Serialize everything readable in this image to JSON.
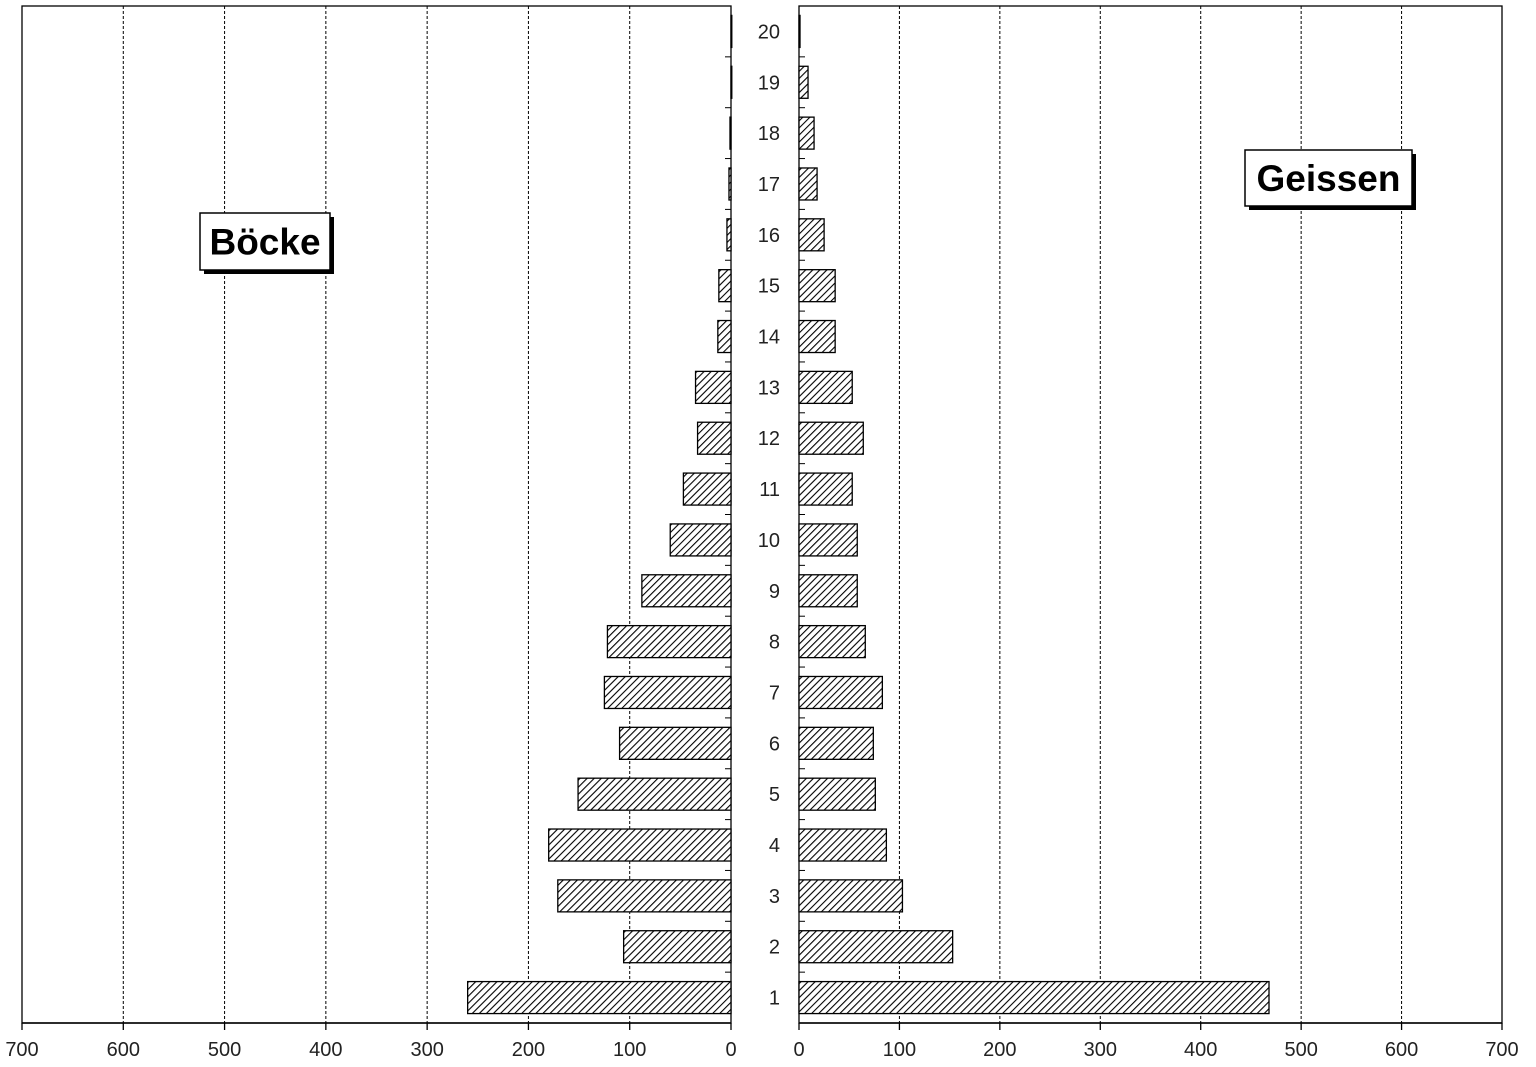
{
  "chart_data": {
    "type": "bar",
    "orientation": "horizontal",
    "layout": "population-pyramid",
    "categories": [
      "1",
      "2",
      "3",
      "4",
      "5",
      "6",
      "7",
      "8",
      "9",
      "10",
      "11",
      "12",
      "13",
      "14",
      "15",
      "16",
      "17",
      "18",
      "19",
      "20"
    ],
    "series": [
      {
        "name": "Böcke",
        "side": "left",
        "values": [
          260,
          106,
          171,
          180,
          151,
          110,
          125,
          122,
          88,
          60,
          47,
          33,
          35,
          13,
          12,
          4,
          2,
          1,
          0,
          0
        ]
      },
      {
        "name": "Geissen",
        "side": "right",
        "values": [
          468,
          153,
          103,
          87,
          76,
          74,
          83,
          66,
          58,
          58,
          53,
          64,
          53,
          36,
          36,
          25,
          18,
          15,
          9,
          1
        ]
      }
    ],
    "xlim": [
      0,
      700
    ],
    "x_ticks": [
      0,
      100,
      200,
      300,
      400,
      500,
      600,
      700
    ],
    "grid": "vertical dashed",
    "bar_fill": "diagonal hatch",
    "colors": {
      "bar_fill": "#ffffff",
      "hatch": "#000000",
      "axis": "#000000",
      "grid": "#000000"
    }
  }
}
